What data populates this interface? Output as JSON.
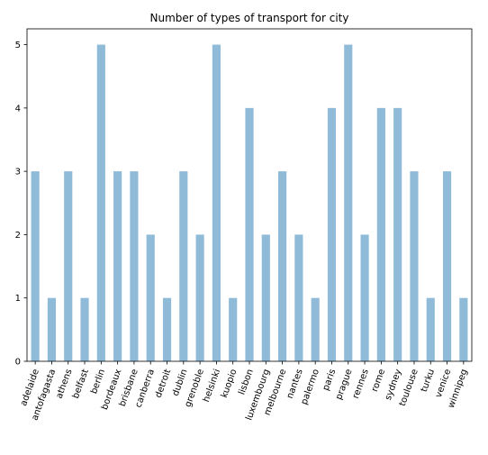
{
  "chart_data": {
    "type": "bar",
    "title": "Number of types of transport for city",
    "xlabel": "",
    "ylabel": "",
    "categories": [
      "adelaide",
      "antofagasta",
      "athens",
      "belfast",
      "berlin",
      "bordeaux",
      "brisbane",
      "canberra",
      "detroit",
      "dublin",
      "grenoble",
      "helsinki",
      "kuopio",
      "lisbon",
      "luxembourg",
      "melbourne",
      "nantes",
      "palermo",
      "paris",
      "prague",
      "rennes",
      "rome",
      "sydney",
      "toulouse",
      "turku",
      "venice",
      "winnipeg"
    ],
    "values": [
      3,
      1,
      3,
      1,
      5,
      3,
      3,
      2,
      1,
      3,
      2,
      5,
      1,
      4,
      2,
      3,
      2,
      1,
      4,
      5,
      2,
      4,
      4,
      3,
      1,
      3,
      1
    ],
    "ylim": [
      0,
      5.25
    ],
    "yticks": [
      0,
      1,
      2,
      3,
      4,
      5
    ],
    "grid": false,
    "bar_color": "#1f77b4",
    "bar_alpha": 0.5
  }
}
